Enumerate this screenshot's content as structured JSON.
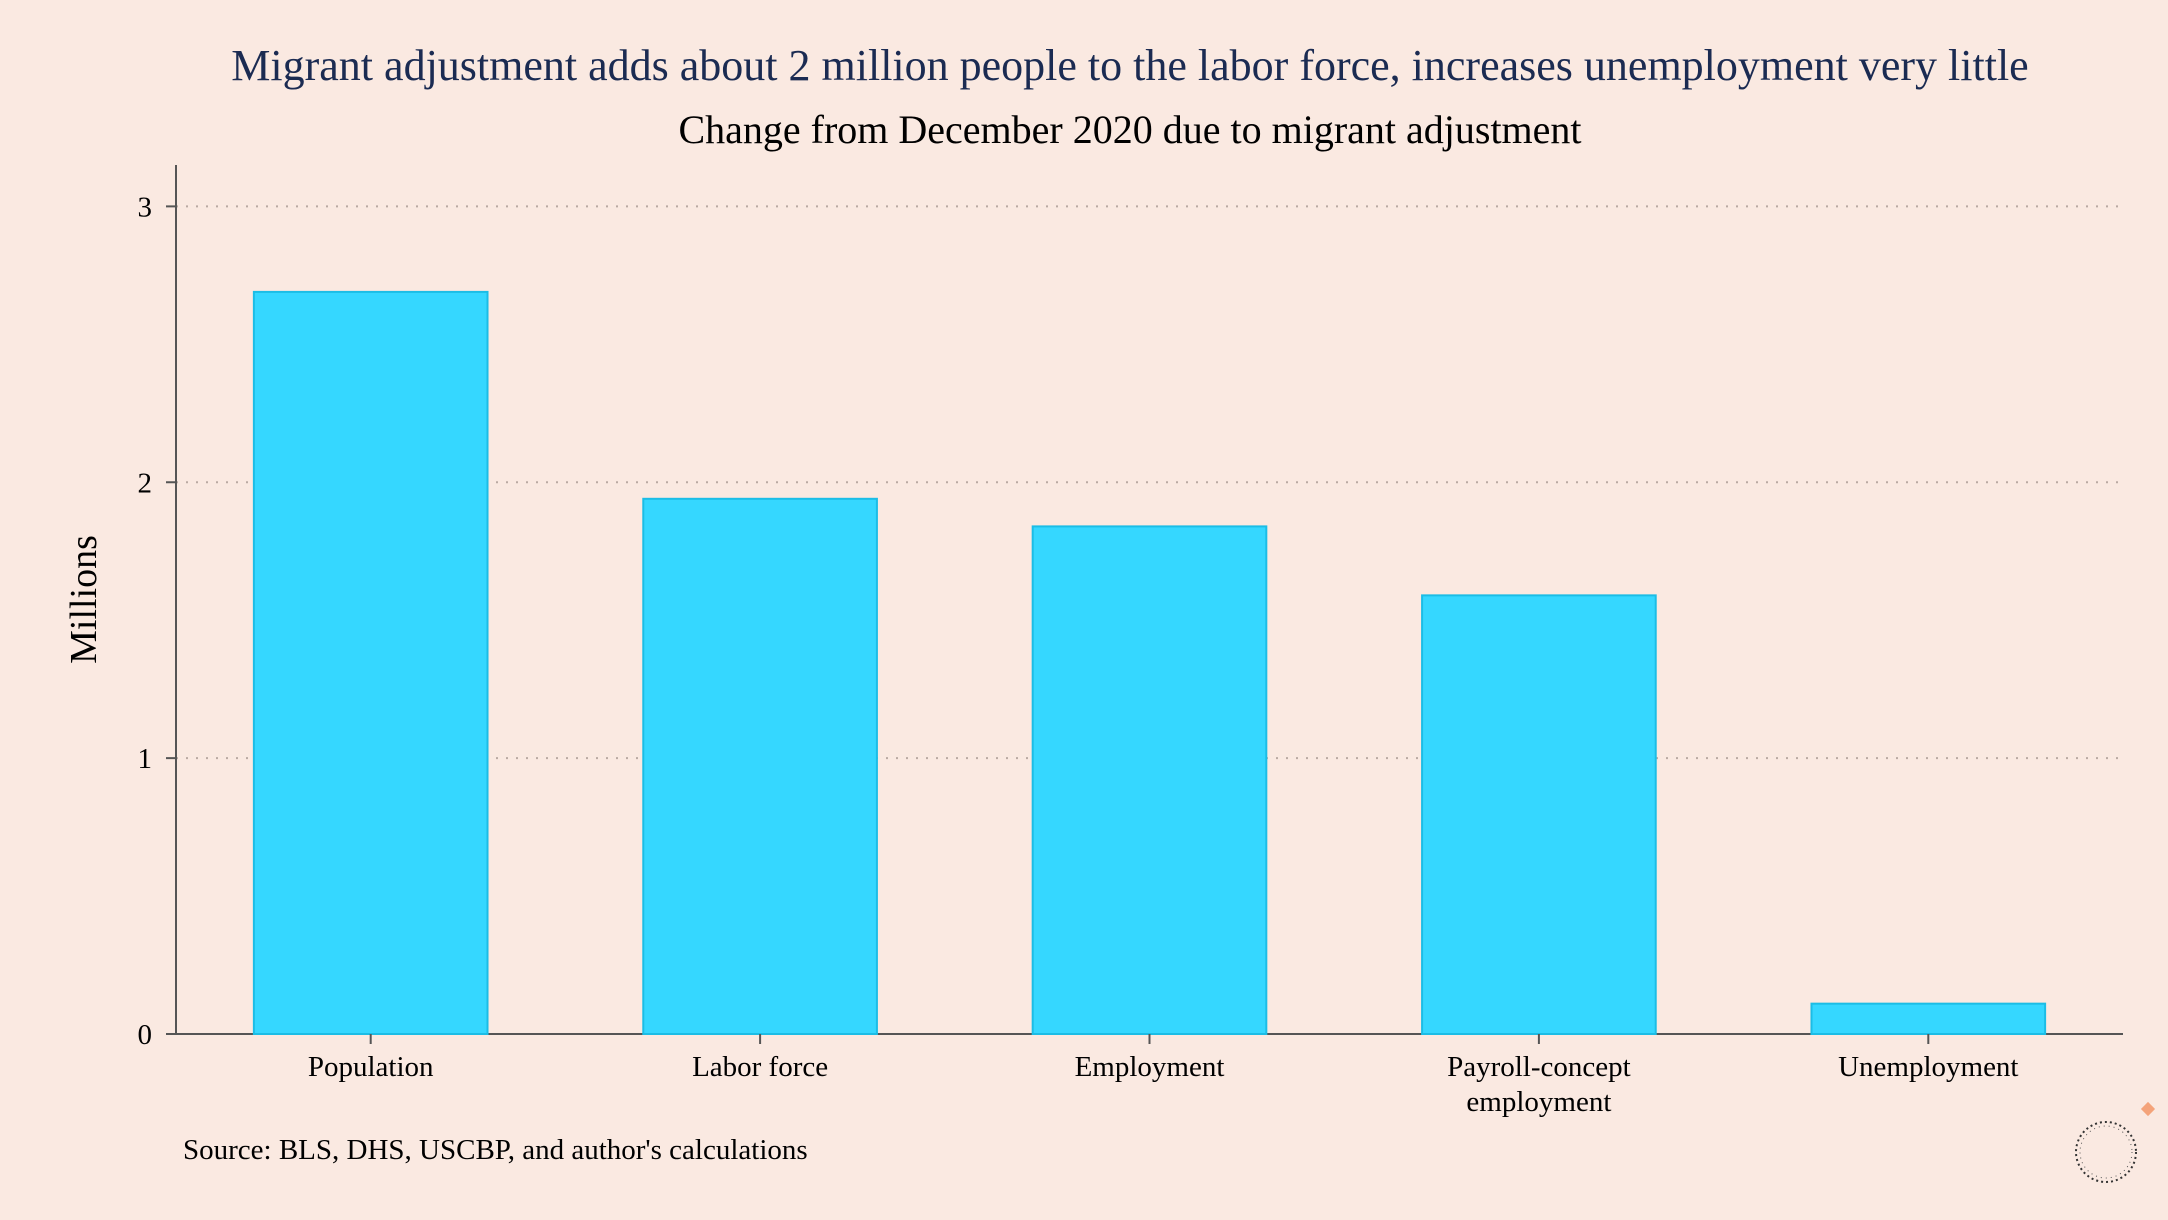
{
  "title": "Migrant adjustment adds about 2 million people to the labor force, increases unemployment very little",
  "subtitle": "Change from December 2020 due to migrant adjustment",
  "source": "Source: BLS, DHS, USCBP, and author's calculations",
  "colors": {
    "background": "#fae9e1",
    "bar_fill": "#35d7ff",
    "bar_stroke": "#1bbde6",
    "title": "#1b2b52",
    "grid": "#b9a9a2",
    "axis": "#555555",
    "logo_accent": "#f4a37a"
  },
  "chart_data": {
    "type": "bar",
    "title": "Migrant adjustment adds about 2 million people to the labor force, increases unemployment very little",
    "subtitle": "Change from December 2020 due to migrant adjustment",
    "xlabel": "",
    "ylabel": "Millions",
    "categories": [
      [
        "Population"
      ],
      [
        "Labor force"
      ],
      [
        "Employment"
      ],
      [
        "Payroll-concept",
        "employment"
      ],
      [
        "Unemployment"
      ]
    ],
    "values": [
      2.69,
      1.94,
      1.84,
      1.59,
      0.11
    ],
    "ylim": [
      0,
      3.15
    ],
    "yticks": [
      0,
      1,
      2,
      3
    ],
    "grid": true,
    "legend": "none"
  }
}
